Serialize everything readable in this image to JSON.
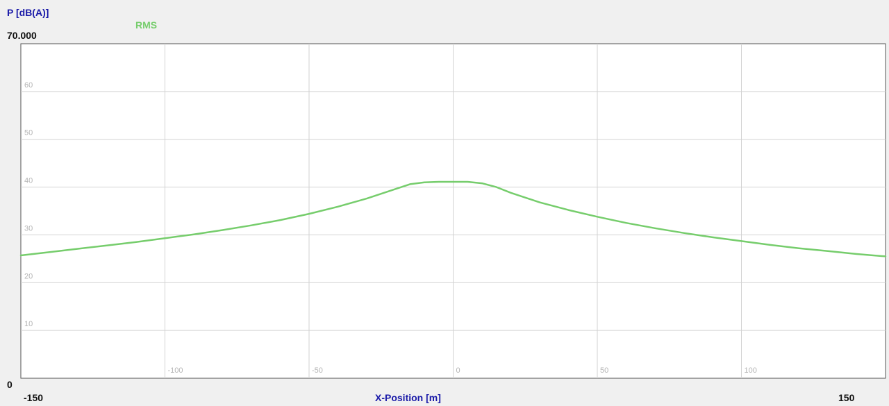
{
  "chart_data": {
    "type": "line",
    "ylabel": "P [dB(A)]",
    "xlabel": "X-Position [m]",
    "ymax_label": "70.000",
    "ymin_label": "0",
    "xmin_label": "-150",
    "xmax_label": "150",
    "xlim": [
      -150,
      150
    ],
    "ylim": [
      0,
      70
    ],
    "x_ticks": [
      -100,
      -50,
      0,
      50,
      100
    ],
    "x_tick_labels": [
      "-100",
      "-50",
      "0",
      "50",
      "100"
    ],
    "y_ticks": [
      10,
      20,
      30,
      40,
      50,
      60
    ],
    "y_tick_labels": [
      "10",
      "20",
      "30",
      "40",
      "50",
      "60"
    ],
    "grid": true,
    "legend_placement": "top-left",
    "series": [
      {
        "name": "RMS",
        "color": "#76cd6c",
        "x": [
          -150,
          -140,
          -130,
          -120,
          -110,
          -100,
          -90,
          -80,
          -70,
          -60,
          -50,
          -40,
          -30,
          -20,
          -15,
          -10,
          -5,
          0,
          5,
          10,
          15,
          20,
          30,
          40,
          50,
          60,
          70,
          80,
          90,
          100,
          110,
          120,
          130,
          140,
          150
        ],
        "y": [
          25.7,
          26.4,
          27.1,
          27.8,
          28.5,
          29.3,
          30.1,
          31.0,
          32.0,
          33.1,
          34.4,
          35.9,
          37.6,
          39.6,
          40.6,
          41.0,
          41.1,
          41.1,
          41.1,
          40.8,
          40.0,
          38.8,
          36.8,
          35.2,
          33.8,
          32.5,
          31.4,
          30.4,
          29.5,
          28.7,
          27.9,
          27.2,
          26.6,
          26.0,
          25.5
        ]
      }
    ]
  }
}
